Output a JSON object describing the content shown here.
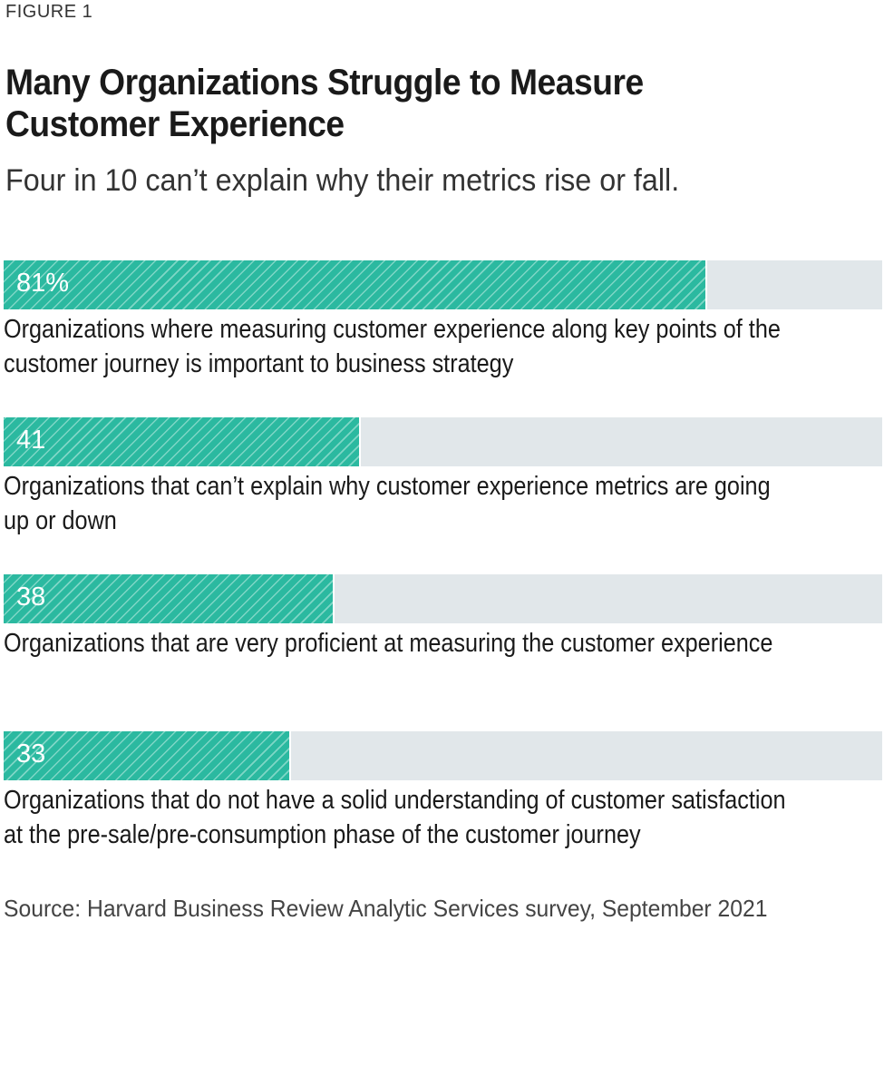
{
  "figure_label": "FIGURE 1",
  "chart_data": {
    "type": "bar",
    "title": "Many Organizations Struggle to Measure Customer Experience",
    "subtitle": "Four in 10 can’t explain why their metrics rise or fall.",
    "xlim": [
      0,
      100
    ],
    "categories": [
      [
        "Organizations where measuring customer experience along key points of the",
        "customer journey is important to business strategy"
      ],
      [
        "Organizations that can’t explain why customer experience metrics are going",
        "up or down"
      ],
      [
        "Organizations that are very proficient at measuring the customer experience"
      ],
      [
        "Organizations that do not have a solid understanding of customer satisfaction",
        "at the pre-sale/pre-consumption phase of the customer journey"
      ]
    ],
    "values": [
      81,
      41,
      38,
      33
    ],
    "value_labels": [
      "81%",
      "41",
      "38",
      "33"
    ],
    "colors": {
      "fill": "#2bb9a0",
      "track": "#e1e7ea"
    }
  },
  "source": "Source: Harvard Business Review Analytic Services survey, September 2021"
}
